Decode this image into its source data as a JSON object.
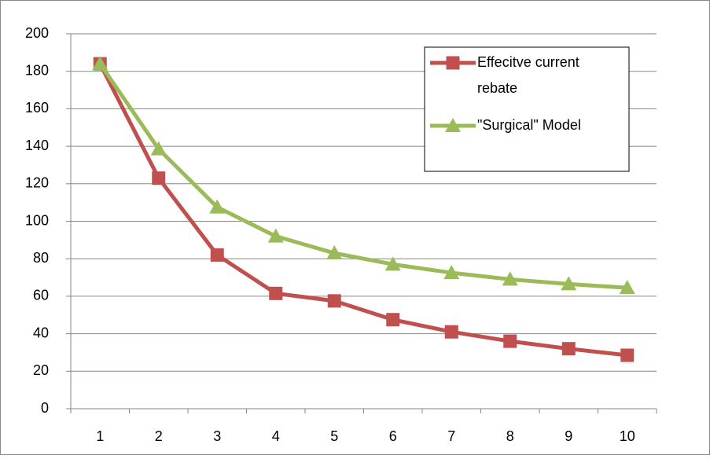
{
  "chart_data": {
    "type": "line",
    "categories": [
      "1",
      "2",
      "3",
      "4",
      "5",
      "6",
      "7",
      "8",
      "9",
      "10"
    ],
    "series": [
      {
        "name": "Effecitve current rebate",
        "color": "#c0504d",
        "marker": "square",
        "values": [
          184,
          123,
          82,
          61.5,
          57.5,
          47.5,
          41,
          36,
          32,
          28.5
        ]
      },
      {
        "name": "\"Surgical\" Model",
        "color": "#9bbb59",
        "marker": "triangle",
        "values": [
          184,
          138.5,
          107.5,
          92,
          83,
          77,
          72.5,
          69,
          66.5,
          64.5
        ]
      }
    ],
    "ylim": [
      0,
      200
    ],
    "yticks": [
      0,
      20,
      40,
      60,
      80,
      100,
      120,
      140,
      160,
      180,
      200
    ],
    "grid": true,
    "legend": "upper right"
  }
}
